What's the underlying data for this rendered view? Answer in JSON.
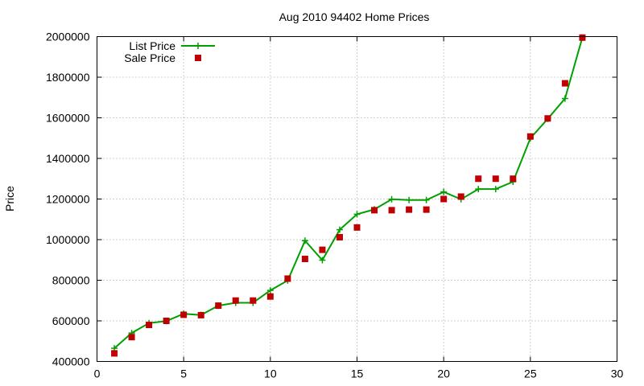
{
  "chart_data": {
    "type": "line",
    "title": "Aug 2010 94402 Home Prices",
    "xlabel": "",
    "ylabel": "Price",
    "xlim": [
      0,
      30
    ],
    "ylim": [
      400000,
      2000000
    ],
    "x_ticks": [
      0,
      5,
      10,
      15,
      20,
      25,
      30
    ],
    "y_ticks": [
      400000,
      600000,
      800000,
      1000000,
      1200000,
      1400000,
      1600000,
      1800000,
      2000000
    ],
    "grid": true,
    "legend_position": "top-left",
    "series": [
      {
        "name": "List Price",
        "style": "line-with-cross-markers",
        "color": "#00a000",
        "x": [
          1,
          2,
          3,
          4,
          5,
          6,
          7,
          8,
          9,
          10,
          11,
          12,
          13,
          14,
          15,
          16,
          17,
          18,
          19,
          20,
          21,
          22,
          23,
          24,
          25,
          26,
          27,
          28
        ],
        "values": [
          465000,
          540000,
          589000,
          599000,
          635000,
          629000,
          675000,
          689000,
          689000,
          750000,
          799000,
          995000,
          899000,
          1049000,
          1125000,
          1149000,
          1199000,
          1195000,
          1195000,
          1235000,
          1199000,
          1249000,
          1249000,
          1285000,
          1499000,
          1595000,
          1695000,
          1995000
        ]
      },
      {
        "name": "Sale Price",
        "style": "square-markers",
        "color": "#c00000",
        "x": [
          1,
          2,
          3,
          4,
          5,
          6,
          7,
          8,
          9,
          10,
          11,
          12,
          13,
          14,
          15,
          16,
          17,
          18,
          19,
          20,
          21,
          22,
          23,
          24,
          25,
          26,
          27,
          28
        ],
        "values": [
          440000,
          520000,
          580000,
          600000,
          630000,
          628000,
          675000,
          700000,
          700000,
          720000,
          808000,
          905000,
          950000,
          1012000,
          1060000,
          1145000,
          1145000,
          1148000,
          1148000,
          1200000,
          1212000,
          1300000,
          1300000,
          1300000,
          1508000,
          1597000,
          1770000,
          1995000
        ]
      }
    ]
  }
}
